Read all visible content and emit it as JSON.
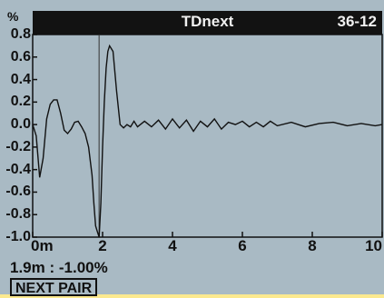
{
  "header": {
    "title": "TDnext",
    "pair_id": "36-12"
  },
  "readout": {
    "text": "1.9m : -1.00%"
  },
  "buttons": {
    "next_pair": "NEXT PAIR"
  },
  "colors": {
    "screen": "#a9bac4",
    "titlebar": "#121212",
    "trace": "#111111",
    "background": "#fbe98f"
  },
  "chart_data": {
    "type": "line",
    "title": "TDnext",
    "ylabel": "%",
    "xlabel": "",
    "xlim": [
      0,
      10
    ],
    "ylim": [
      -1.0,
      0.8
    ],
    "x_ticks": [
      "0m",
      "2",
      "4",
      "6",
      "8",
      "10"
    ],
    "y_ticks": [
      "0.8",
      "0.6",
      "0.4",
      "0.2",
      "0.0",
      "-0.2",
      "-0.4",
      "-0.6",
      "-0.8",
      "-1.0"
    ],
    "cursor_x": 1.9,
    "cursor_y": -1.0,
    "series": [
      {
        "x": [
          0,
          0.1,
          0.2,
          0.3,
          0.4,
          0.5,
          0.6,
          0.7,
          0.8,
          0.9,
          1.0,
          1.05,
          1.1,
          1.2,
          1.3,
          1.4,
          1.5,
          1.6,
          1.7,
          1.75,
          1.8,
          1.85,
          1.9,
          1.95,
          2.0,
          2.05,
          2.1,
          2.15,
          2.2,
          2.3,
          2.4,
          2.5,
          2.6,
          2.7,
          2.8,
          2.9,
          3.0,
          3.2,
          3.4,
          3.6,
          3.8,
          4.0,
          4.2,
          4.4,
          4.6,
          4.8,
          5.0,
          5.2,
          5.4,
          5.6,
          5.8,
          6.0,
          6.2,
          6.4,
          6.6,
          6.8,
          7.0,
          7.4,
          7.8,
          8.2,
          8.6,
          9.0,
          9.4,
          9.8,
          10.0
        ],
        "values": [
          0.0,
          -0.1,
          -0.47,
          -0.3,
          0.05,
          0.18,
          0.22,
          0.22,
          0.1,
          -0.05,
          -0.08,
          -0.06,
          -0.04,
          0.02,
          0.03,
          -0.02,
          -0.08,
          -0.2,
          -0.45,
          -0.7,
          -0.9,
          -0.95,
          -1.0,
          -0.7,
          -0.2,
          0.2,
          0.5,
          0.65,
          0.7,
          0.65,
          0.3,
          0.0,
          -0.03,
          0.0,
          -0.02,
          0.03,
          -0.02,
          0.03,
          -0.02,
          0.04,
          -0.04,
          0.05,
          -0.03,
          0.04,
          -0.06,
          0.03,
          -0.02,
          0.05,
          -0.04,
          0.02,
          0.0,
          0.03,
          -0.02,
          0.02,
          -0.02,
          0.03,
          -0.01,
          0.02,
          -0.02,
          0.01,
          0.02,
          -0.01,
          0.01,
          -0.01,
          0.0
        ]
      }
    ]
  }
}
